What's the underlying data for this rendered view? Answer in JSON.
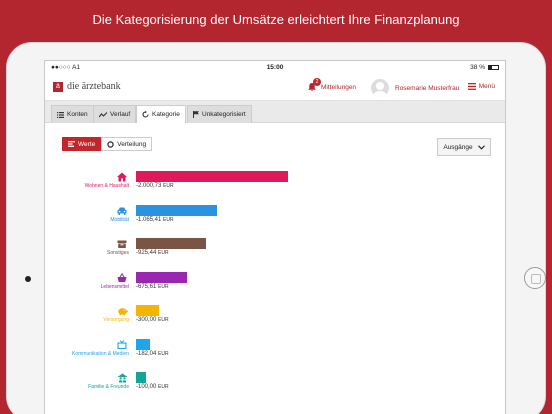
{
  "headline": "Die Kategorisierung der Umsätze erleichtert Ihre Finanzplanung",
  "status": {
    "carrier": "●●○○○ A1",
    "time": "15:00",
    "battery": "38 %",
    "battery_level": 0.38
  },
  "appbar": {
    "logo_text": "die ärztebank",
    "notifications_label": "Mitteilungen",
    "notifications_count": "2",
    "user_name": "Rosemarie Musterfrau",
    "menu_label": "Menü"
  },
  "tabs": [
    {
      "label": "Konten",
      "icon": "list-icon",
      "active": false
    },
    {
      "label": "Verlauf",
      "icon": "trend-icon",
      "active": false
    },
    {
      "label": "Kategorie",
      "icon": "refresh-icon",
      "active": true
    },
    {
      "label": "Unkategorisiert",
      "icon": "flag-icon",
      "active": false
    }
  ],
  "view_toggle": {
    "values_label": "Werte",
    "distribution_label": "Verteilung",
    "selected": "Werte"
  },
  "dropdown": {
    "selected": "Ausgänge"
  },
  "categories": [
    {
      "label": "Wohnen & Haushalt",
      "value": "-2.000,73",
      "unit": "EUR",
      "amount": 2000.73,
      "color": "#e0195f",
      "icon": "house-icon"
    },
    {
      "label": "Mobilität",
      "value": "-1.065,41",
      "unit": "EUR",
      "amount": 1065.41,
      "color": "#2a93e0",
      "icon": "car-icon"
    },
    {
      "label": "Sonstiges",
      "value": "-925,44",
      "unit": "EUR",
      "amount": 925.44,
      "color": "#7a5444",
      "icon": "box-icon"
    },
    {
      "label": "Lebensmittel",
      "value": "-675,61",
      "unit": "EUR",
      "amount": 675.61,
      "color": "#9b27b0",
      "icon": "basket-icon"
    },
    {
      "label": "Versorgung",
      "value": "-300,00",
      "unit": "EUR",
      "amount": 300.0,
      "color": "#f5b400",
      "icon": "piggy-bank-icon"
    },
    {
      "label": "Kommunikation & Medien",
      "value": "-182,04",
      "unit": "EUR",
      "amount": 182.04,
      "color": "#1fa6e8",
      "icon": "tv-icon"
    },
    {
      "label": "Familie & Freunde",
      "value": "-100,00",
      "unit": "EUR",
      "amount": 100.0,
      "color": "#12a59a",
      "icon": "people-icon"
    }
  ]
}
